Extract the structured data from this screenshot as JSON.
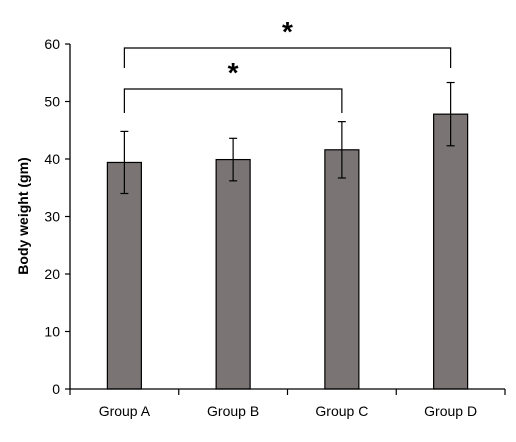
{
  "chart_data": {
    "type": "bar",
    "ylabel": "Body weight (gm)",
    "xlabel": "",
    "categories": [
      "Group A",
      "Group B",
      "Group C",
      "Group D"
    ],
    "values": [
      39.4,
      39.9,
      41.6,
      47.8
    ],
    "errors": [
      5.4,
      3.7,
      4.9,
      5.5
    ],
    "ylim": [
      0,
      60
    ],
    "yticks": [
      0,
      10,
      20,
      30,
      40,
      50,
      60
    ],
    "grid": false,
    "bar_color": "#7a7474",
    "significance": [
      {
        "from": "Group A",
        "to": "Group C",
        "label": "*"
      },
      {
        "from": "Group A",
        "to": "Group D",
        "label": "*"
      }
    ]
  }
}
